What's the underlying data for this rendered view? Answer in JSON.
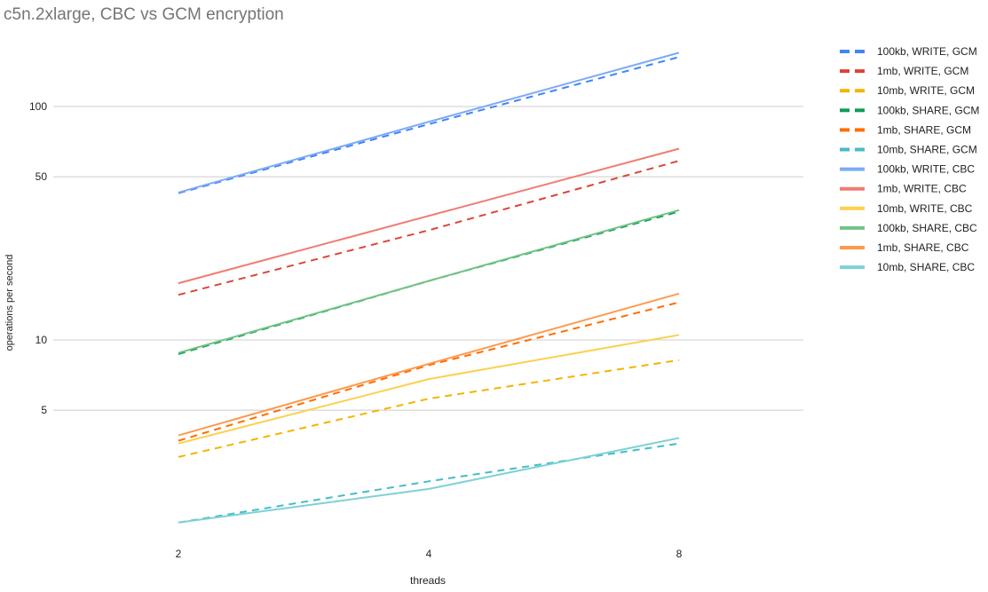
{
  "chart_data": {
    "type": "line",
    "title": "c5n.2xlarge, CBC vs GCM encryption",
    "xlabel": "threads",
    "ylabel": "operations per second",
    "x": [
      2,
      4,
      8
    ],
    "x_scale": "log2",
    "y_scale": "log",
    "ylim": [
      1.6,
      200
    ],
    "y_ticks": [
      5,
      10,
      50,
      100
    ],
    "y_tick_labels": [
      "5",
      "10",
      "50",
      "100"
    ],
    "x_tick_labels": [
      "2",
      "4",
      "8"
    ],
    "grid": "horizontal",
    "legend_position": "right",
    "series": [
      {
        "name": "100kb, WRITE, GCM",
        "style": "dashed",
        "color": "#4285f4",
        "values": [
          42.5,
          84,
          163
        ]
      },
      {
        "name": "1mb, WRITE, GCM",
        "style": "dashed",
        "color": "#db4437",
        "values": [
          15.6,
          29.5,
          58.5
        ]
      },
      {
        "name": "10mb, WRITE, GCM",
        "style": "dashed",
        "color": "#f4b400",
        "values": [
          3.15,
          5.6,
          8.2
        ]
      },
      {
        "name": "100kb, SHARE, GCM",
        "style": "dashed",
        "color": "#0f9d58",
        "values": [
          8.7,
          17.9,
          35.5
        ]
      },
      {
        "name": "1mb, SHARE, GCM",
        "style": "dashed",
        "color": "#ff6d00",
        "values": [
          3.7,
          7.8,
          14.5
        ]
      },
      {
        "name": "10mb, SHARE, GCM",
        "style": "dashed",
        "color": "#46bdc6",
        "values": [
          1.65,
          2.48,
          3.6
        ]
      },
      {
        "name": "100kb, WRITE, CBC",
        "style": "solid",
        "color": "#7baaf7",
        "values": [
          42.8,
          86,
          170
        ]
      },
      {
        "name": "1mb, WRITE, CBC",
        "style": "solid",
        "color": "#f07b72",
        "values": [
          17.5,
          34,
          66
        ]
      },
      {
        "name": "10mb, WRITE, CBC",
        "style": "solid",
        "color": "#fcd04f",
        "values": [
          3.6,
          6.8,
          10.5
        ]
      },
      {
        "name": "100kb, SHARE, CBC",
        "style": "solid",
        "color": "#71c287",
        "values": [
          8.8,
          17.9,
          36
        ]
      },
      {
        "name": "1mb, SHARE, CBC",
        "style": "solid",
        "color": "#ff994d",
        "values": [
          3.9,
          7.9,
          15.8
        ]
      },
      {
        "name": "10mb, SHARE, CBC",
        "style": "solid",
        "color": "#7ed1d7",
        "values": [
          1.65,
          2.3,
          3.8
        ]
      }
    ]
  }
}
